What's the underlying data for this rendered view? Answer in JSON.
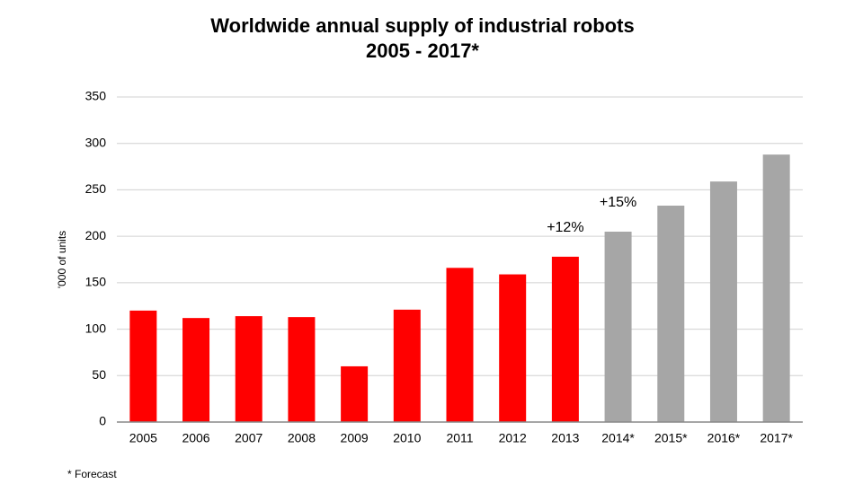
{
  "chart_data": {
    "type": "bar",
    "title": "Worldwide annual supply of industrial robots",
    "subtitle": "2005 - 2017*",
    "y_label": "'000 of units",
    "footnote": "* Forecast",
    "categories": [
      "2005",
      "2006",
      "2007",
      "2008",
      "2009",
      "2010",
      "2011",
      "2012",
      "2013",
      "2014*",
      "2015*",
      "2016*",
      "2017*"
    ],
    "values": [
      120,
      112,
      114,
      113,
      60,
      121,
      166,
      159,
      178,
      205,
      233,
      259,
      288
    ],
    "colors": [
      "#ff0000",
      "#ff0000",
      "#ff0000",
      "#ff0000",
      "#ff0000",
      "#ff0000",
      "#ff0000",
      "#ff0000",
      "#ff0000",
      "#a6a6a6",
      "#a6a6a6",
      "#a6a6a6",
      "#a6a6a6"
    ],
    "annotations": [
      {
        "text": "+12%",
        "category": "2013"
      },
      {
        "text": "+15%",
        "category": "2014*"
      }
    ],
    "ylim": [
      0,
      350
    ],
    "yticks": [
      0,
      50,
      100,
      150,
      200,
      250,
      300,
      350
    ],
    "grid": true
  }
}
